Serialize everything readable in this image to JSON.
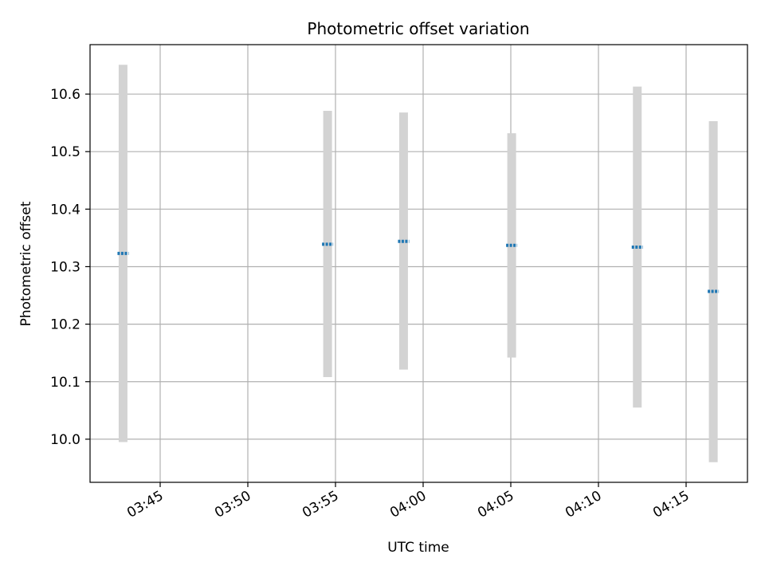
{
  "chart_data": {
    "type": "scatter",
    "title": "Photometric offset variation",
    "xlabel": "UTC time",
    "ylabel": "Photometric offset",
    "x_type": "time",
    "xlim": [
      "03:41:00",
      "04:18:30"
    ],
    "ylim": [
      9.925,
      10.686
    ],
    "x_ticks": [
      "03:45",
      "03:50",
      "03:55",
      "04:00",
      "04:05",
      "04:10",
      "04:15"
    ],
    "y_ticks": [
      10.0,
      10.1,
      10.2,
      10.3,
      10.4,
      10.5,
      10.6
    ],
    "grid": true,
    "error_bar_color": "#d3d3d3",
    "point_color": "#1f77b4",
    "series": [
      {
        "points": [
          {
            "time": "03:42:53",
            "y": 10.323,
            "ymin": 9.995,
            "ymax": 10.651
          },
          {
            "time": "03:54:33",
            "y": 10.339,
            "ymin": 10.108,
            "ymax": 10.571
          },
          {
            "time": "03:58:53",
            "y": 10.344,
            "ymin": 10.121,
            "ymax": 10.568
          },
          {
            "time": "04:05:03",
            "y": 10.337,
            "ymin": 10.142,
            "ymax": 10.532
          },
          {
            "time": "04:12:13",
            "y": 10.334,
            "ymin": 10.055,
            "ymax": 10.613
          },
          {
            "time": "04:16:33",
            "y": 10.257,
            "ymin": 9.96,
            "ymax": 10.553
          }
        ]
      }
    ]
  }
}
